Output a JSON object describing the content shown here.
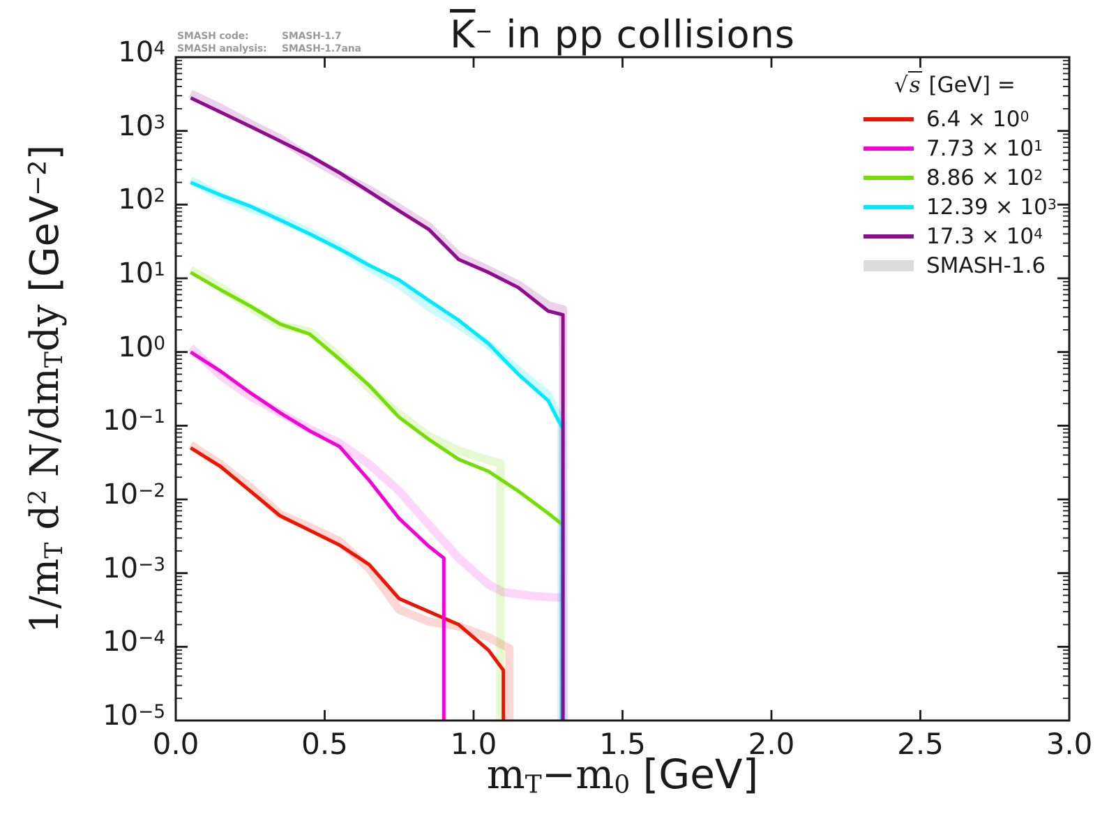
{
  "meta": {
    "code_label": "SMASH code:",
    "code_value": "SMASH-1.7",
    "analysis_label": "SMASH analysis:",
    "analysis_value": "SMASH-1.7ana"
  },
  "title": {
    "particle": "K",
    "charge": "−",
    "rest": " in pp collisions"
  },
  "colors": {
    "frame": "#1a1a1a",
    "note_gray": "#9a9a9a",
    "red": "#ED1400",
    "magenta": "#F301DA",
    "green": "#72DE02",
    "cyan": "#00E9FF",
    "purple": "#8E0C8E",
    "smash16_gray": "#DCDCDC"
  },
  "legend": {
    "header_radical": "√",
    "header_arg": "s",
    "header_rest": " [GeV] =",
    "times": "×",
    "entries": [
      {
        "value": "6.4",
        "base": "10",
        "exp": "0",
        "color": "#ED1400",
        "swatch": "line"
      },
      {
        "value": "7.73",
        "base": "10",
        "exp": "1",
        "color": "#F301DA",
        "swatch": "line"
      },
      {
        "value": "8.86",
        "base": "10",
        "exp": "2",
        "color": "#72DE02",
        "swatch": "line"
      },
      {
        "value": "12.39",
        "base": "10",
        "exp": "3",
        "color": "#00E9FF",
        "swatch": "line"
      },
      {
        "value": "17.3",
        "base": "10",
        "exp": "4",
        "color": "#8E0C8E",
        "swatch": "line"
      },
      {
        "label": "SMASH-1.6",
        "color": "#DCDCDC",
        "swatch": "band"
      }
    ]
  },
  "axes": {
    "x_range": [
      0.0,
      3.0
    ],
    "y_range_exponents": [
      -5,
      4
    ],
    "grid": false,
    "x_ticks": [
      {
        "v": 0.0,
        "label": "0.0"
      },
      {
        "v": 0.5,
        "label": "0.5"
      },
      {
        "v": 1.0,
        "label": "1.0"
      },
      {
        "v": 1.5,
        "label": "1.5"
      },
      {
        "v": 2.0,
        "label": "2.0"
      },
      {
        "v": 2.5,
        "label": "2.5"
      },
      {
        "v": 3.0,
        "label": "3.0"
      }
    ],
    "y_ticks": [
      {
        "exp": 4,
        "label_exp": "4"
      },
      {
        "exp": 3,
        "label_exp": "3"
      },
      {
        "exp": 2,
        "label_exp": "2"
      },
      {
        "exp": 1,
        "label_exp": "1"
      },
      {
        "exp": 0,
        "label_exp": "0"
      },
      {
        "exp": -1,
        "label_exp": "−1"
      },
      {
        "exp": -2,
        "label_exp": "−2"
      },
      {
        "exp": -3,
        "label_exp": "−3"
      },
      {
        "exp": -4,
        "label_exp": "−4"
      },
      {
        "exp": -5,
        "label_exp": "−5"
      }
    ],
    "y_label_parts": [
      {
        "t": "1/m",
        "f": "serif"
      },
      {
        "t": "T",
        "f": "serif",
        "pos": "sub"
      },
      {
        "t": " d",
        "f": "serif"
      },
      {
        "t": "2",
        "f": "serif",
        "pos": "sup"
      },
      {
        "t": " N/dm",
        "f": "serif"
      },
      {
        "t": "T",
        "f": "serif",
        "pos": "sub"
      },
      {
        "t": "dy  ",
        "f": "serif"
      },
      {
        "t": "[GeV",
        "f": "sans"
      },
      {
        "t": "−2",
        "f": "sans",
        "pos": "sup"
      },
      {
        "t": "]",
        "f": "sans"
      }
    ],
    "x_label_parts": [
      {
        "t": "m",
        "f": "serif"
      },
      {
        "t": "T",
        "f": "serif",
        "pos": "sub"
      },
      {
        "t": "−",
        "f": "serif"
      },
      {
        "t": "m",
        "f": "serif"
      },
      {
        "t": "0",
        "f": "serif",
        "pos": "sub"
      },
      {
        "t": " [GeV]",
        "f": "sans"
      }
    ]
  },
  "chart_data": {
    "type": "line",
    "title": "K̄⁻ in pp collisions",
    "xlabel": "mT−m0 [GeV]",
    "ylabel": "1/mT d2N/dmTdy [GeV−2]",
    "x_scale": "linear",
    "y_scale": "log",
    "xlim": [
      0.0,
      3.0
    ],
    "ylim": [
      1e-05,
      10000.0
    ],
    "legend_position": "upper right",
    "series": [
      {
        "name": "6.4 × 10^0",
        "sqrt_s_gev": 6.4,
        "scale_exp": 0,
        "color": "#ED1400",
        "band_color": "rgba(237,20,0,0.17)",
        "x": [
          0.05,
          0.15,
          0.25,
          0.35,
          0.45,
          0.55,
          0.65,
          0.75,
          0.85,
          0.95,
          1.05,
          1.1
        ],
        "y": [
          0.05,
          0.028,
          0.013,
          0.006,
          0.0038,
          0.0024,
          0.0013,
          0.00045,
          0.0003,
          0.0002,
          9e-05,
          4.8e-05
        ],
        "drop_x": 1.1,
        "band_x": [
          0.05,
          0.15,
          0.25,
          0.35,
          0.45,
          0.55,
          0.65,
          0.75,
          0.85,
          0.95,
          1.05,
          1.12
        ],
        "band_y": [
          0.055,
          0.03,
          0.0145,
          0.0063,
          0.0042,
          0.0027,
          0.00115,
          0.00032,
          0.00022,
          0.00019,
          0.000135,
          9.5e-05
        ],
        "band_drop_x": 1.12
      },
      {
        "name": "7.73 × 10^1",
        "sqrt_s_gev": 7.73,
        "scale_exp": 1,
        "color": "#F301DA",
        "band_color": "rgba(243,1,218,0.16)",
        "x": [
          0.05,
          0.15,
          0.25,
          0.35,
          0.45,
          0.55,
          0.65,
          0.75,
          0.85,
          0.9
        ],
        "y": [
          1.0,
          0.55,
          0.28,
          0.15,
          0.085,
          0.052,
          0.018,
          0.0055,
          0.0023,
          0.0016
        ],
        "drop_x": 0.9,
        "band_x": [
          0.05,
          0.15,
          0.25,
          0.35,
          0.45,
          0.55,
          0.65,
          0.75,
          0.85,
          0.95,
          1.05,
          1.1,
          1.2,
          1.3
        ],
        "band_y": [
          1.15,
          0.48,
          0.25,
          0.15,
          0.09,
          0.058,
          0.03,
          0.013,
          0.0045,
          0.0016,
          0.0007,
          0.00055,
          0.00049,
          0.00046
        ],
        "band_drop_x": null
      },
      {
        "name": "8.86 × 10^2",
        "sqrt_s_gev": 8.86,
        "scale_exp": 2,
        "color": "#72DE02",
        "band_color": "rgba(114,222,2,0.18)",
        "x": [
          0.05,
          0.15,
          0.25,
          0.35,
          0.45,
          0.55,
          0.65,
          0.75,
          0.85,
          0.95,
          1.05,
          1.15,
          1.25,
          1.3
        ],
        "y": [
          12,
          7,
          4.2,
          2.4,
          1.75,
          0.8,
          0.35,
          0.13,
          0.065,
          0.035,
          0.024,
          0.013,
          0.0065,
          0.0045
        ],
        "drop_x": 1.298,
        "band_x": [
          0.05,
          0.15,
          0.25,
          0.35,
          0.45,
          0.55,
          0.65,
          0.75,
          0.85,
          0.95,
          1.05,
          1.09
        ],
        "band_y": [
          13,
          7.6,
          4.0,
          2.3,
          1.9,
          0.85,
          0.32,
          0.145,
          0.072,
          0.046,
          0.034,
          0.031
        ],
        "band_drop_x": 1.09
      },
      {
        "name": "12.39 × 10^3",
        "sqrt_s_gev": 12.39,
        "scale_exp": 3,
        "color": "#00E9FF",
        "band_color": "rgba(0,233,255,0.20)",
        "x": [
          0.05,
          0.15,
          0.25,
          0.35,
          0.45,
          0.55,
          0.65,
          0.75,
          0.85,
          0.95,
          1.05,
          1.15,
          1.25,
          1.3
        ],
        "y": [
          200,
          135,
          95,
          62,
          40,
          25,
          15,
          9.5,
          5.0,
          2.7,
          1.3,
          0.5,
          0.22,
          0.09
        ],
        "drop_x": 1.296,
        "band_x": [
          0.05,
          0.15,
          0.25,
          0.35,
          0.45,
          0.55,
          0.65,
          0.75,
          0.85,
          0.95,
          1.05,
          1.15,
          1.25,
          1.295
        ],
        "band_y": [
          215,
          130,
          90,
          64,
          42,
          26,
          14,
          8.3,
          4.1,
          2.35,
          1.25,
          0.56,
          0.26,
          0.11
        ],
        "band_drop_x": 1.295
      },
      {
        "name": "17.3 × 10^4",
        "sqrt_s_gev": 17.3,
        "scale_exp": 4,
        "color": "#8E0C8E",
        "band_color": "rgba(142,12,142,0.18)",
        "x": [
          0.05,
          0.15,
          0.25,
          0.35,
          0.45,
          0.55,
          0.65,
          0.75,
          0.85,
          0.95,
          1.05,
          1.15,
          1.25,
          1.3
        ],
        "y": [
          2800,
          1800,
          1150,
          730,
          460,
          270,
          150,
          82,
          46,
          18,
          12,
          7.5,
          3.6,
          3.2
        ],
        "drop_x": 1.3,
        "band_x": [
          0.05,
          0.15,
          0.25,
          0.35,
          0.45,
          0.55,
          0.65,
          0.75,
          0.85,
          0.95,
          1.05,
          1.15,
          1.25,
          1.3
        ],
        "band_y": [
          3200,
          2050,
          1250,
          790,
          430,
          255,
          160,
          90,
          50,
          20,
          13,
          8.2,
          4.3,
          3.8
        ],
        "band_drop_x": 1.302
      }
    ],
    "smash16_band_meaning": "SMASH-1.6"
  }
}
